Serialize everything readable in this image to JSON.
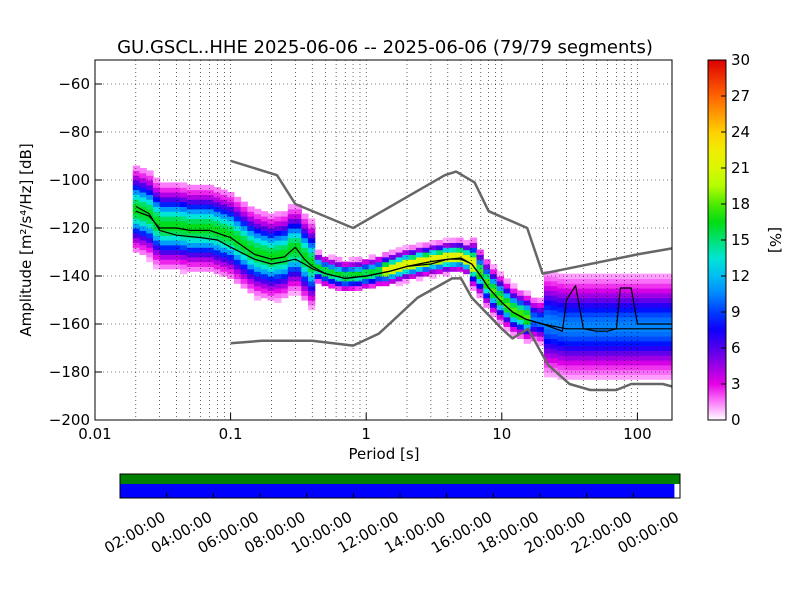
{
  "chart_data": {
    "type": "heatmap",
    "title": "GU.GSCL..HHE   2025-06-06 -- 2025-06-06  (79/79 segments)",
    "xlabel": "Period [s]",
    "ylabel": "Amplitude [m²/s⁴/Hz] [dB]",
    "xscale": "log",
    "xlim": [
      0.01,
      180
    ],
    "ylim": [
      -200,
      -50
    ],
    "x_ticks": [
      0.01,
      0.1,
      1,
      10,
      100
    ],
    "x_tick_labels": [
      "0.01",
      "0.1",
      "1",
      "10",
      "100"
    ],
    "y_ticks": [
      -200,
      -180,
      -160,
      -140,
      -120,
      -100,
      -80,
      -60
    ],
    "y_tick_labels": [
      "−200",
      "−180",
      "−160",
      "−140",
      "−120",
      "−100",
      "−80",
      "−60"
    ],
    "grid": true,
    "colorbar": {
      "label": "[%]",
      "min": 0,
      "max": 30,
      "ticks": [
        0,
        3,
        6,
        9,
        12,
        15,
        18,
        21,
        24,
        27,
        30
      ],
      "tick_labels": [
        "0",
        "3",
        "6",
        "9",
        "12",
        "15",
        "18",
        "21",
        "24",
        "27",
        "30"
      ]
    },
    "series": [
      {
        "kind": "noise_model_high",
        "color": "#666666",
        "points": [
          [
            0.1,
            -92
          ],
          [
            0.22,
            -98
          ],
          [
            0.3,
            -110
          ],
          [
            0.8,
            -120
          ],
          [
            3.8,
            -98
          ],
          [
            4.6,
            -96.5
          ],
          [
            6.3,
            -101
          ],
          [
            8,
            -113
          ],
          [
            15.4,
            -120
          ],
          [
            20,
            -139
          ],
          [
            30,
            -137
          ],
          [
            100,
            -131
          ],
          [
            180,
            -128.5
          ]
        ]
      },
      {
        "kind": "noise_model_low",
        "color": "#666666",
        "points": [
          [
            0.1,
            -168
          ],
          [
            0.17,
            -167
          ],
          [
            0.4,
            -167
          ],
          [
            0.8,
            -169
          ],
          [
            1.24,
            -164
          ],
          [
            2.4,
            -149
          ],
          [
            4.3,
            -141
          ],
          [
            5,
            -141
          ],
          [
            6,
            -149
          ],
          [
            10,
            -162
          ],
          [
            12,
            -166
          ],
          [
            15.6,
            -162
          ],
          [
            21.9,
            -177
          ],
          [
            31.6,
            -185
          ],
          [
            45,
            -187.5
          ],
          [
            70,
            -187.5
          ],
          [
            90,
            -185
          ],
          [
            154,
            -185
          ],
          [
            180,
            -186
          ]
        ]
      },
      {
        "kind": "median",
        "color": "#000000",
        "points": [
          [
            0.02,
            -111
          ],
          [
            0.025,
            -114
          ],
          [
            0.03,
            -121
          ],
          [
            0.04,
            -123
          ],
          [
            0.06,
            -124
          ],
          [
            0.08,
            -125
          ],
          [
            0.1,
            -128
          ],
          [
            0.15,
            -133
          ],
          [
            0.2,
            -135
          ],
          [
            0.25,
            -134
          ],
          [
            0.3,
            -133
          ],
          [
            0.35,
            -135
          ],
          [
            0.4,
            -137
          ],
          [
            0.5,
            -139
          ],
          [
            0.7,
            -141
          ],
          [
            1,
            -140
          ],
          [
            1.5,
            -138
          ],
          [
            2,
            -136
          ],
          [
            3,
            -135
          ],
          [
            4,
            -133
          ],
          [
            5,
            -133
          ],
          [
            6,
            -135
          ],
          [
            7,
            -140
          ],
          [
            8,
            -145
          ],
          [
            10,
            -151
          ],
          [
            12,
            -155
          ],
          [
            15,
            -158
          ],
          [
            20,
            -160
          ],
          [
            25,
            -162
          ],
          [
            28,
            -163
          ],
          [
            30,
            -150
          ],
          [
            35,
            -144
          ],
          [
            40,
            -162
          ],
          [
            50,
            -163
          ],
          [
            60,
            -163
          ],
          [
            70,
            -162
          ],
          [
            75,
            -145
          ],
          [
            90,
            -145
          ],
          [
            100,
            -160
          ],
          [
            180,
            -160
          ]
        ]
      },
      {
        "kind": "mode",
        "color": "#000000",
        "points": [
          [
            0.02,
            -113
          ],
          [
            0.025,
            -115
          ],
          [
            0.03,
            -120
          ],
          [
            0.04,
            -120
          ],
          [
            0.05,
            -121
          ],
          [
            0.07,
            -121
          ],
          [
            0.1,
            -124
          ],
          [
            0.15,
            -131
          ],
          [
            0.2,
            -133
          ],
          [
            0.25,
            -132
          ],
          [
            0.3,
            -128
          ],
          [
            0.35,
            -133
          ],
          [
            0.4,
            -136
          ],
          [
            0.5,
            -139
          ],
          [
            0.7,
            -141
          ],
          [
            1,
            -140
          ],
          [
            1.5,
            -138
          ],
          [
            2,
            -136
          ],
          [
            3,
            -134
          ],
          [
            4,
            -133
          ],
          [
            5,
            -132.5
          ],
          [
            6,
            -135
          ],
          [
            7,
            -140
          ],
          [
            8,
            -145
          ],
          [
            10,
            -151
          ],
          [
            12,
            -155
          ],
          [
            15,
            -158
          ],
          [
            20,
            -160
          ],
          [
            30,
            -162
          ],
          [
            180,
            -162
          ]
        ]
      }
    ],
    "timeline": {
      "ticks": [
        "02:00:00",
        "04:00:00",
        "06:00:00",
        "08:00:00",
        "10:00:00",
        "12:00:00",
        "14:00:00",
        "16:00:00",
        "18:00:00",
        "20:00:00",
        "22:00:00",
        "00:00:00"
      ],
      "data_bar_color": "#008000",
      "psd_bar_color": "#0000ff",
      "data_coverage": 1.0,
      "psd_coverage": 0.99
    }
  }
}
